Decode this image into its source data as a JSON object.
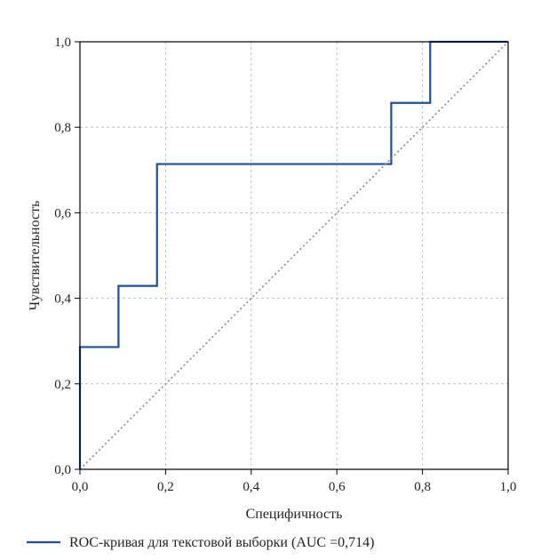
{
  "chart_data": {
    "type": "line",
    "xlabel": "Специфичность",
    "ylabel": "Чувствительность",
    "xlim": [
      0,
      1
    ],
    "ylim": [
      0,
      1
    ],
    "x_ticks": [
      0,
      0.2,
      0.4,
      0.6,
      0.8,
      1.0
    ],
    "y_ticks": [
      0,
      0.2,
      0.4,
      0.6,
      0.8,
      1.0
    ],
    "x_tick_labels": [
      "0,0",
      "0,2",
      "0,4",
      "0,6",
      "0,8",
      "1,0"
    ],
    "y_tick_labels": [
      "0,0",
      "0,2",
      "0,4",
      "0,6",
      "0,8",
      "1,0"
    ],
    "grid": true,
    "legend_position": "bottom",
    "series": [
      {
        "name": "ROC-кривая для текстовой выборки (AUC =0,714)",
        "color": "#1f4e9c",
        "style": "step",
        "x": [
          0,
          0,
          0.09,
          0.09,
          0.18,
          0.18,
          0.727,
          0.727,
          0.818,
          0.818,
          1.0
        ],
        "y": [
          0,
          0.286,
          0.286,
          0.429,
          0.429,
          0.714,
          0.714,
          0.857,
          0.857,
          1.0,
          1.0
        ]
      },
      {
        "color": "#888888",
        "style": "dotted",
        "x": [
          0,
          1
        ],
        "y": [
          0,
          1
        ]
      }
    ]
  }
}
